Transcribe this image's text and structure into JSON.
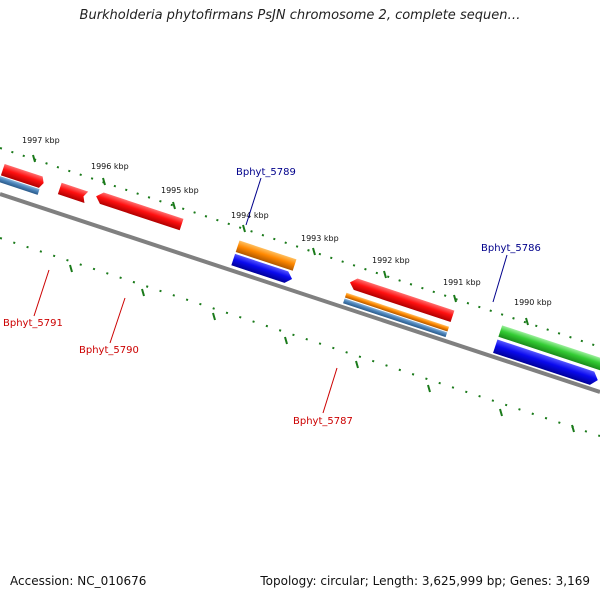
{
  "title": "Burkholderia phytofirmans PsJN chromosome 2, complete sequen…",
  "footer": {
    "accession": "Accession: NC_010676",
    "summary": "Topology: circular; Length: 3,625,999 bp; Genes: 3,169"
  },
  "ruler": {
    "unit": "kbp",
    "ticks": [
      "1997 kbp",
      "1996 kbp",
      "1995 kbp",
      "1994 kbp",
      "1993 kbp",
      "1992 kbp",
      "1991 kbp",
      "1990 kbp"
    ]
  },
  "gene_labels": [
    {
      "text": "Bphyt_5789",
      "color": "#00008b"
    },
    {
      "text": "Bphyt_5786",
      "color": "#00008b"
    },
    {
      "text": "Bphyt_5791",
      "color": "#cc0000"
    },
    {
      "text": "Bphyt_5790",
      "color": "#cc0000"
    },
    {
      "text": "Bphyt_5787",
      "color": "#cc0000"
    }
  ],
  "colors": {
    "backbone": "#808080",
    "ruler": "#1a7a1a",
    "red_feature": "#ee1111",
    "blue_feature": "#1010ee",
    "orange_feature": "#ff8800",
    "steelblue_feature": "#4a82b8",
    "green_feature": "#33cc33"
  }
}
